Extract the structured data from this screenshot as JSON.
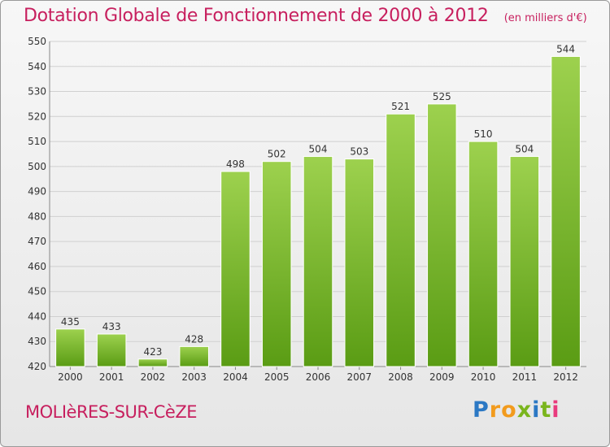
{
  "header": {
    "title": "Dotation Globale de Fonctionnement de 2000 à 2012",
    "unit": "(en milliers d'€)"
  },
  "footer": {
    "commune": "MOLIèRES-SUR-CèZE",
    "logo": "Proxiti"
  },
  "colors": {
    "title": "#c71f5e",
    "bar_light": "#9dd14e",
    "bar_dark": "#5a9c14",
    "grid": "#d0d0d0"
  },
  "chart_data": {
    "type": "bar",
    "title": "Dotation Globale de Fonctionnement de 2000 à 2012",
    "subtitle": "(en milliers d'€)",
    "xlabel": "",
    "ylabel": "",
    "categories": [
      "2000",
      "2001",
      "2002",
      "2003",
      "2004",
      "2005",
      "2006",
      "2007",
      "2008",
      "2009",
      "2010",
      "2011",
      "2012"
    ],
    "values": [
      435,
      433,
      423,
      428,
      498,
      502,
      504,
      503,
      521,
      525,
      510,
      504,
      544
    ],
    "ylim": [
      420,
      550
    ],
    "yticks": [
      420,
      430,
      440,
      450,
      460,
      470,
      480,
      490,
      500,
      510,
      520,
      530,
      540,
      550
    ],
    "grid": true,
    "legend": "none"
  }
}
